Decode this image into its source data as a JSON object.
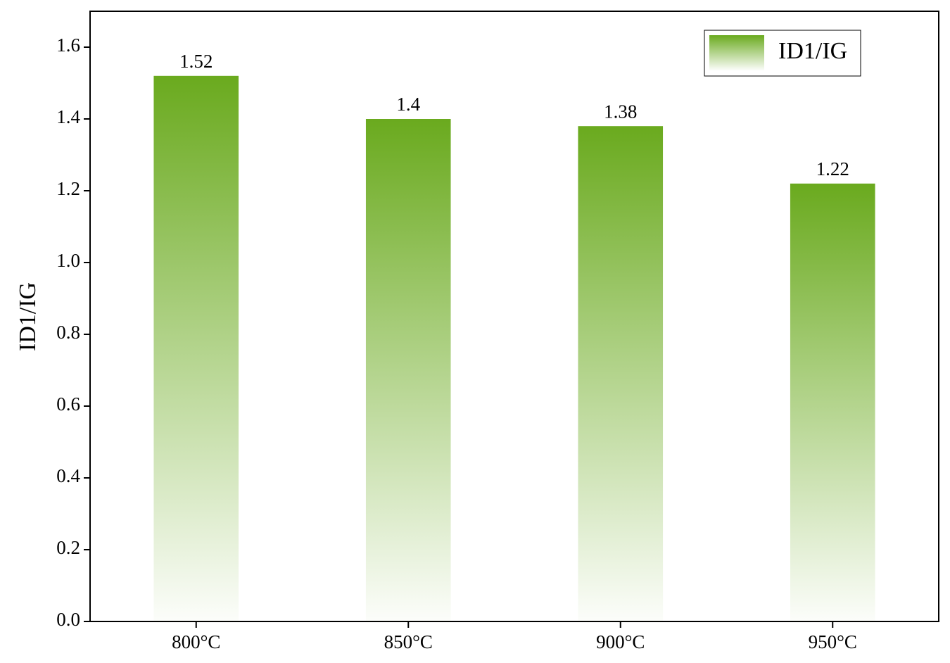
{
  "chart_data": {
    "type": "bar",
    "y_label": "ID1/IG",
    "categories": [
      "800°C",
      "850°C",
      "900°C",
      "950°C"
    ],
    "series": [
      {
        "name": "ID1/IG",
        "color": "#6aaa1e",
        "values": [
          1.52,
          1.4,
          1.38,
          1.22
        ]
      }
    ],
    "ylim": [
      0,
      1.7
    ],
    "yticks": [
      {
        "value": 0,
        "label": "0.0"
      },
      0.2,
      0.4,
      0.6,
      0.8,
      {
        "value": 1,
        "label": "1.0"
      },
      1.2,
      1.4,
      1.6
    ],
    "legend": "upper right",
    "data_labels": true
  }
}
